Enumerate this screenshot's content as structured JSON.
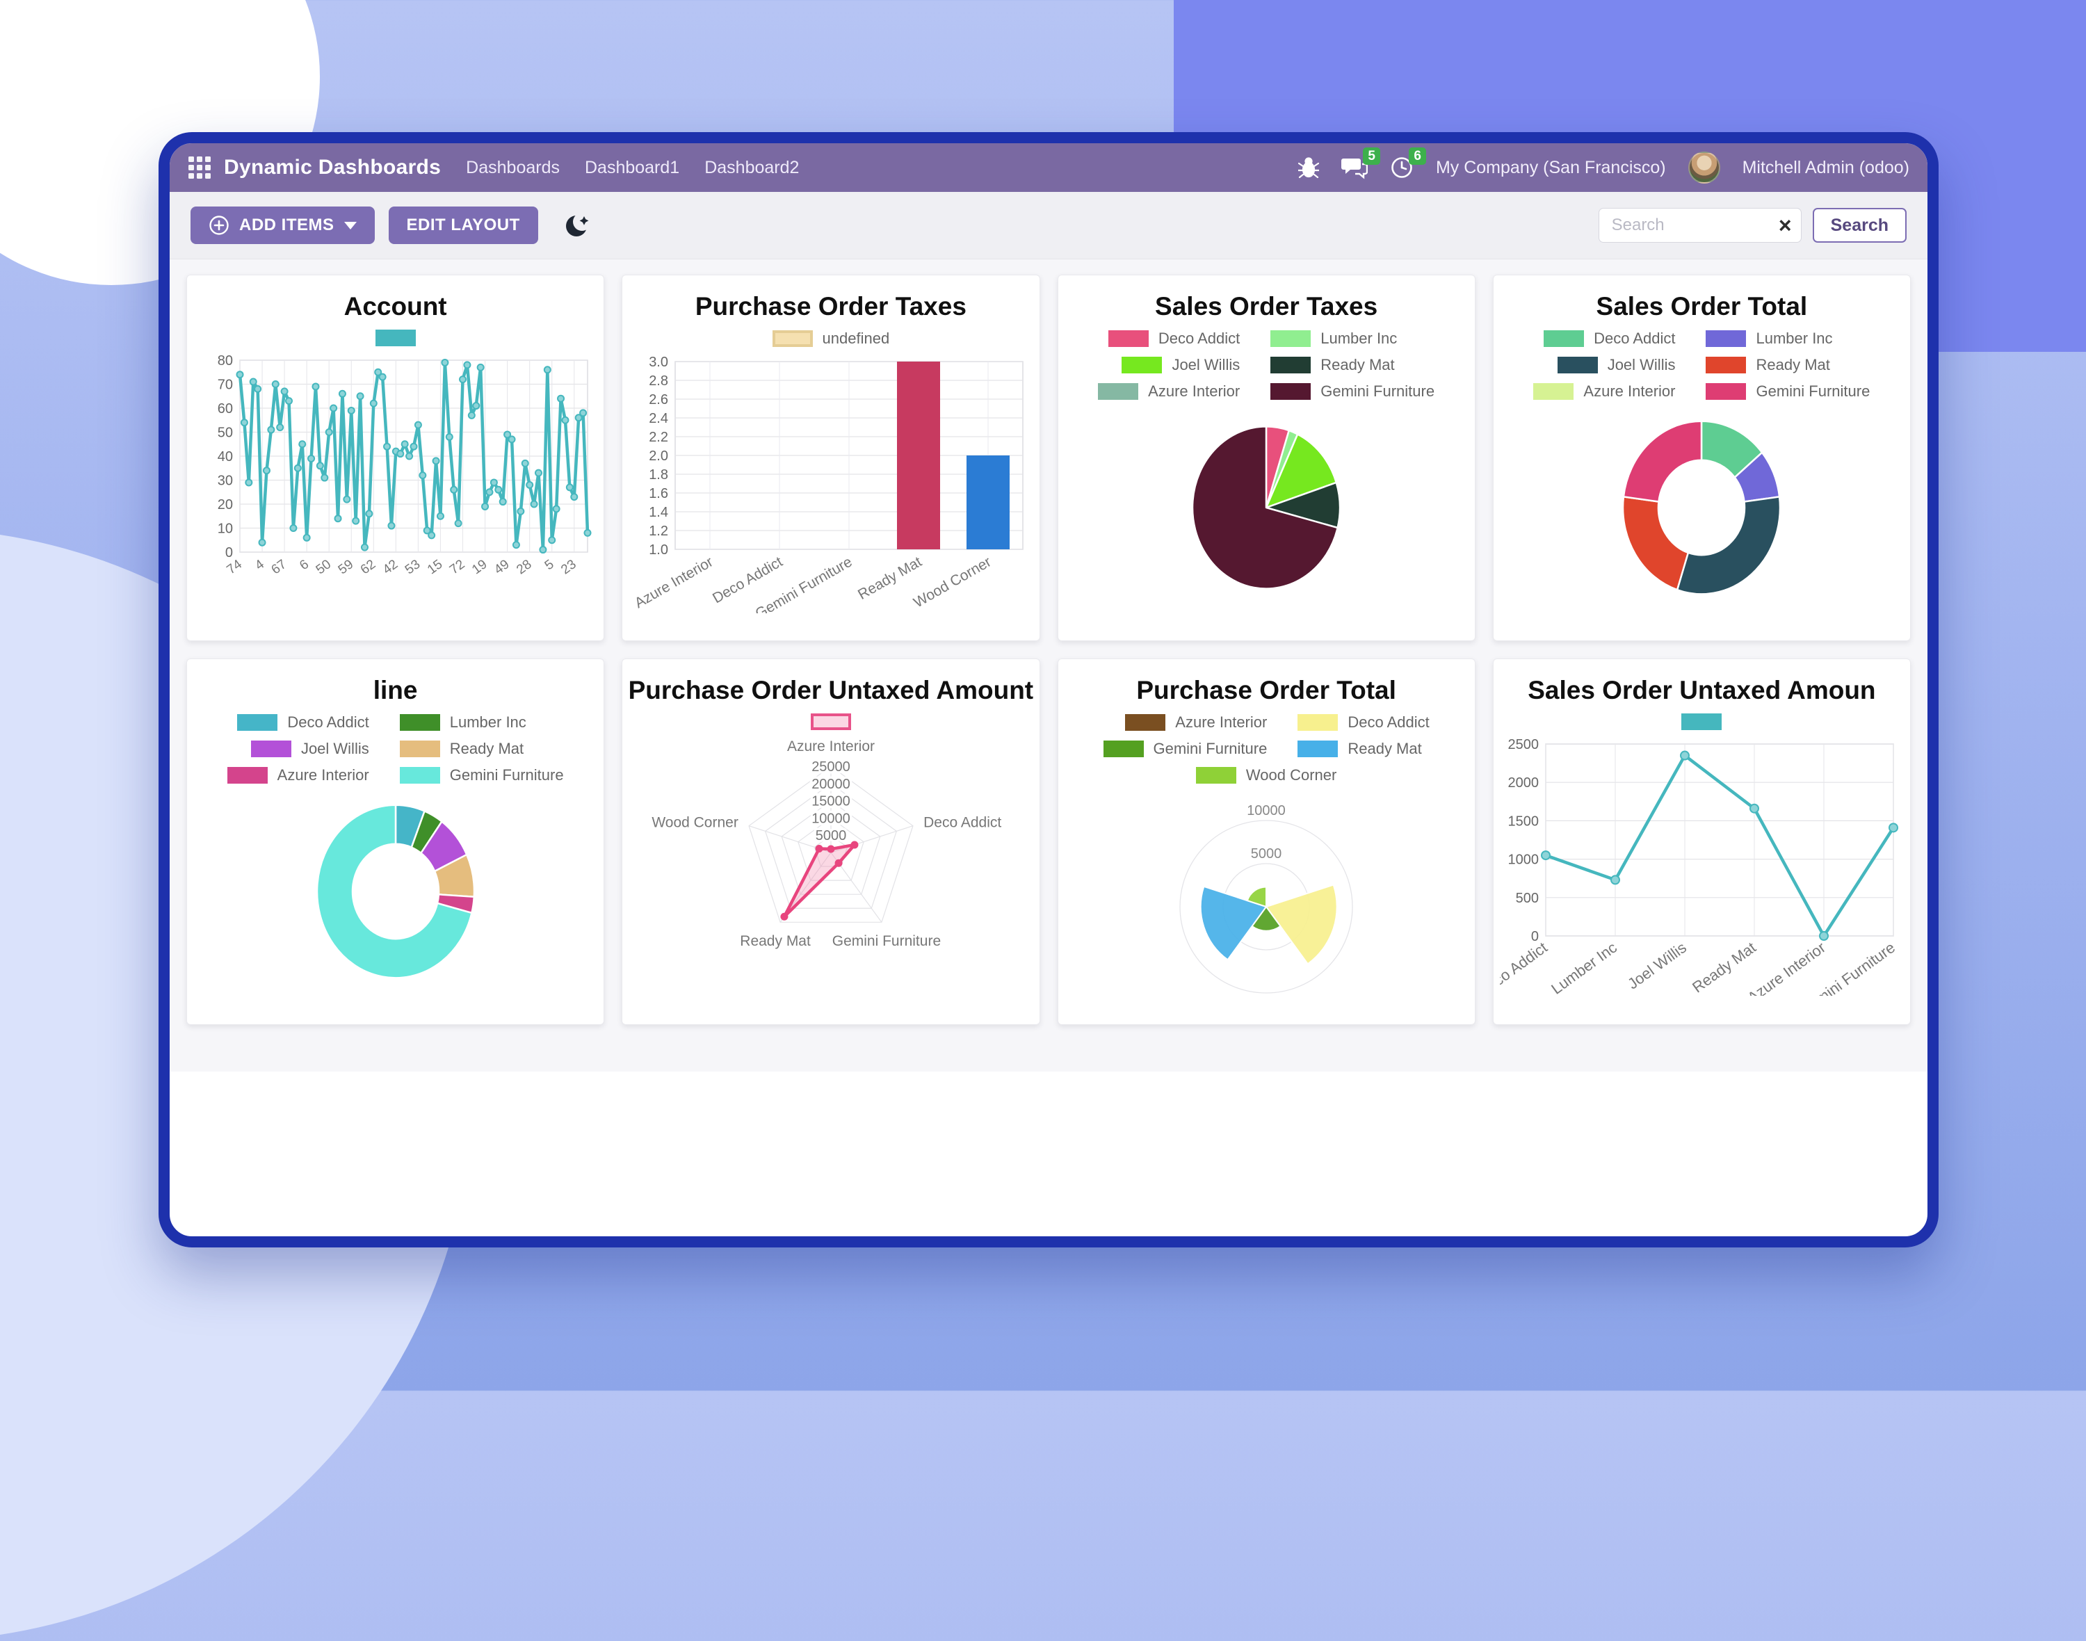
{
  "navbar": {
    "brand": "Dynamic Dashboards",
    "menu": [
      "Dashboards",
      "Dashboard1",
      "Dashboard2"
    ],
    "right": {
      "chat_badge": "5",
      "clock_badge": "6",
      "company": "My Company (San Francisco)",
      "user": "Mitchell Admin (odoo)"
    }
  },
  "toolbar": {
    "add_items_label": "ADD ITEMS",
    "edit_layout_label": "EDIT LAYOUT",
    "search_placeholder": "Search",
    "search_button_label": "Search",
    "clear_label": "×"
  },
  "colors": {
    "accent_purple": "#7c6db3",
    "window_border": "#1e31ac",
    "navbar_bg": "#7a69a2",
    "badge_green": "#3db04c",
    "teal_line": "#45b7be"
  },
  "chart_data": [
    {
      "type": "line",
      "title": "Account",
      "color": "#45b7be",
      "y_min": 0,
      "y_max": 80,
      "y_step": 10,
      "y_decimals": 0,
      "tick_every": 5,
      "x_labels": [
        "74",
        "4",
        "67",
        "6",
        "50",
        "59",
        "62",
        "42",
        "53",
        "15",
        "72",
        "19",
        "49",
        "28",
        "5",
        "23"
      ],
      "values": [
        74,
        54,
        29,
        71,
        68,
        4,
        34,
        51,
        70,
        52,
        67,
        63,
        10,
        35,
        45,
        6,
        39,
        69,
        36,
        31,
        50,
        60,
        14,
        66,
        22,
        59,
        13,
        65,
        2,
        16,
        62,
        75,
        73,
        44,
        11,
        42,
        41,
        45,
        40,
        44,
        53,
        32,
        9,
        7,
        38,
        15,
        79,
        48,
        26,
        12,
        72,
        78,
        57,
        61,
        77,
        19,
        25,
        29,
        26,
        21,
        49,
        47,
        3,
        17,
        37,
        28,
        20,
        33,
        1,
        76,
        5,
        18,
        64,
        55,
        27,
        23,
        56,
        58,
        8
      ],
      "label_size": 19,
      "point_r": 4.5,
      "legend": {
        "items": [
          {
            "color": "#45b7be"
          }
        ]
      }
    },
    {
      "type": "bar",
      "title": "Purchase Order Taxes",
      "y_min": 1.0,
      "y_max": 3.0,
      "y_step": 0.2,
      "y_decimals": 1,
      "categories": [
        "Azure Interior",
        "Deco Addict",
        "Gemini Furniture",
        "Ready Mat",
        "Wood Corner"
      ],
      "values": [
        null,
        null,
        null,
        3.0,
        2.0
      ],
      "bar_colors": [
        null,
        null,
        null,
        "#c73a60",
        "#2b7cd4"
      ],
      "label_size": 21,
      "legend": {
        "items": [
          {
            "label": "undefined",
            "color": "#f5e0b0",
            "border": "#e5cd95"
          }
        ]
      }
    },
    {
      "type": "pie",
      "title": "Sales Order Taxes",
      "labels": [
        "Deco Addict",
        "Lumber Inc",
        "Joel Willis",
        "Ready Mat",
        "Azure Interior",
        "Gemini Furniture"
      ],
      "values": [
        5,
        2,
        13,
        9,
        0,
        71
      ],
      "colors": [
        "#e8507c",
        "#90ee90",
        "#76e81f",
        "#213d33",
        "#85b8a3",
        "#551830"
      ]
    },
    {
      "type": "doughnut",
      "title": "Sales Order Total",
      "labels": [
        "Deco Addict",
        "Lumber Inc",
        "Joel Willis",
        "Ready Mat",
        "Azure Interior",
        "Gemini Furniture"
      ],
      "values": [
        14,
        9,
        32,
        22,
        0,
        23
      ],
      "colors": [
        "#5ecd92",
        "#7068d8",
        "#29505f",
        "#e0452c",
        "#d6f293",
        "#de3d73"
      ]
    },
    {
      "type": "doughnut",
      "title": "line",
      "labels": [
        "Deco Addict",
        "Lumber Inc",
        "Joel Willis",
        "Ready Mat",
        "Azure Interior",
        "Gemini Furniture"
      ],
      "values": [
        6,
        4,
        8,
        8,
        3,
        71
      ],
      "colors": [
        "#45b5c8",
        "#3f8f29",
        "#b351d8",
        "#e5bd7e",
        "#d4448c",
        "#67e8dc"
      ]
    },
    {
      "type": "radar",
      "title": "Purchase Order Untaxed Amount",
      "axes": [
        "Azure Interior",
        "Deco Addict",
        "Gemini Furniture",
        "Ready Mat",
        "Wood Corner"
      ],
      "values": [
        1000,
        7200,
        3800,
        23000,
        3600
      ],
      "r_max": 25000,
      "r_step": 5000,
      "color": "#e8457e",
      "fill": "rgba(244,143,177,0.35)",
      "legend": {
        "items": [
          {
            "color": "#fbd7e4",
            "border": "#e8538a"
          }
        ]
      }
    },
    {
      "type": "polarArea",
      "title": "Purchase Order Total",
      "labels": [
        "Azure Interior",
        "Deco Addict",
        "Gemini Furniture",
        "Ready Mat",
        "Wood Corner"
      ],
      "values": [
        0,
        8200,
        2800,
        7600,
        2300
      ],
      "colors": [
        "#7a4f21",
        "#f7f08e",
        "#54a021",
        "#47b0e8",
        "#8fd137"
      ],
      "r_max": 10000,
      "r_step": 5000
    },
    {
      "type": "line",
      "title": "Sales Order Untaxed Amoun",
      "color": "#45b7be",
      "y_min": 0,
      "y_max": 2500,
      "y_step": 500,
      "y_decimals": 0,
      "tick_every": 1,
      "x_labels": [
        "Deco Addict",
        "Lumber Inc",
        "Joel Willis",
        "Ready Mat",
        "Azure Interior",
        "Gemini Furniture"
      ],
      "values": [
        1050,
        730,
        2350,
        1660,
        0,
        1410
      ],
      "label_size": 22,
      "point_r": 6,
      "legend": {
        "items": [
          {
            "color": "#45b7be"
          }
        ]
      }
    }
  ]
}
